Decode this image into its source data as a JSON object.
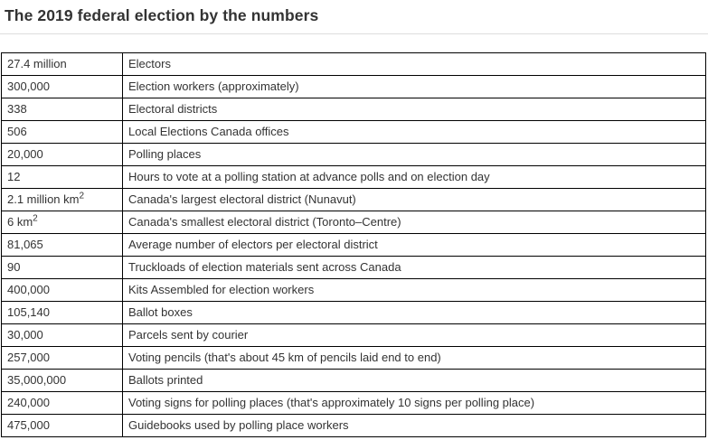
{
  "page": {
    "title": "The 2019 federal election by the numbers"
  },
  "table": {
    "rows": [
      {
        "value": "27.4 million",
        "label": "Electors"
      },
      {
        "value": "300,000",
        "label": "Election workers (approximately)"
      },
      {
        "value": "338",
        "label": "Electoral districts"
      },
      {
        "value": "506",
        "label": "Local Elections Canada offices"
      },
      {
        "value": "20,000",
        "label": "Polling places"
      },
      {
        "value": "12",
        "label": "Hours to vote at a polling station at advance polls and on election day"
      },
      {
        "value": "2.1 million km",
        "value_sup": "2",
        "label": "Canada's largest electoral district (Nunavut)"
      },
      {
        "value": "6 km",
        "value_sup": "2",
        "label": "Canada's smallest electoral district (Toronto–Centre)"
      },
      {
        "value": "81,065",
        "label": "Average number of electors per electoral district"
      },
      {
        "value": "90",
        "label": "Truckloads of election materials sent across Canada"
      },
      {
        "value": "400,000",
        "label": "Kits Assembled for election workers"
      },
      {
        "value": "105,140",
        "label": "Ballot boxes"
      },
      {
        "value": "30,000",
        "label": "Parcels sent by courier"
      },
      {
        "value": "257,000",
        "label": "Voting pencils (that's about 45 km of pencils laid end to end)"
      },
      {
        "value": "35,000,000",
        "label": "Ballots printed"
      },
      {
        "value": "240,000",
        "label": "Voting signs for polling places (that's approximately 10 signs per polling place)"
      },
      {
        "value": "475,000",
        "label": "Guidebooks used by polling place workers"
      }
    ]
  },
  "colors": {
    "title_color": "#333333",
    "text_color": "#333333",
    "table_border": "#000000",
    "rule_color": "#dddddd",
    "bg": "#ffffff"
  }
}
